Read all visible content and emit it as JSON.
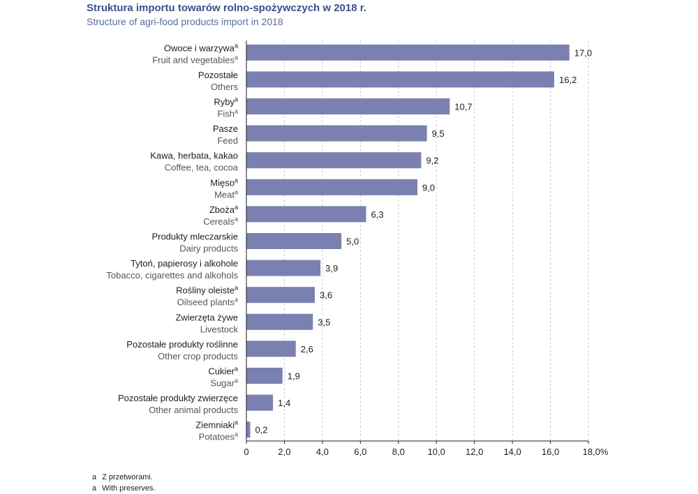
{
  "header": {
    "title": "Struktura importu towarów rolno-spożywczych w 2018 r.",
    "subtitle": "Structure of agri-food products import in 2018"
  },
  "footnotes": [
    {
      "mark": "a",
      "text": "Z przetworami."
    },
    {
      "mark": "a",
      "text": "With preserves."
    }
  ],
  "colors": {
    "bar": "#7a80b0",
    "grid": "#c8c8c8",
    "axis": "#1d1d1b",
    "label_en": "#555555"
  },
  "chart_data": {
    "type": "bar",
    "orientation": "horizontal",
    "categories": [
      {
        "pl": "Owoce i warzywa",
        "en": "Fruit and vegetables",
        "superscript": "a"
      },
      {
        "pl": "Pozostałe",
        "en": "Others",
        "superscript": ""
      },
      {
        "pl": "Ryby",
        "en": "Fish",
        "superscript": "a"
      },
      {
        "pl": "Pasze",
        "en": "Feed",
        "superscript": ""
      },
      {
        "pl": "Kawa, herbata, kakao",
        "en": "Coffee, tea, cocoa",
        "superscript": ""
      },
      {
        "pl": "Mięso",
        "en": "Meat",
        "superscript": "a"
      },
      {
        "pl": "Zboża",
        "en": "Cereals",
        "superscript": "a"
      },
      {
        "pl": "Produkty mleczarskie",
        "en": "Dairy products",
        "superscript": ""
      },
      {
        "pl": "Tytoń, papierosy i alkohole",
        "en": "Tobacco, cigarettes and alkohols",
        "superscript": ""
      },
      {
        "pl": "Rośliny oleiste",
        "en": "Oilseed plants",
        "superscript": "a"
      },
      {
        "pl": "Zwierzęta żywe",
        "en": "Livestock",
        "superscript": ""
      },
      {
        "pl": "Pozostałe produkty roślinne",
        "en": "Other crop products",
        "superscript": ""
      },
      {
        "pl": "Cukier",
        "en": "Sugar",
        "superscript": "a"
      },
      {
        "pl": "Pozostałe produkty zwierzęce",
        "en": "Other animal products",
        "superscript": ""
      },
      {
        "pl": "Ziemniaki",
        "en": "Potatoes",
        "superscript": "a"
      }
    ],
    "values": [
      17.0,
      16.2,
      10.7,
      9.5,
      9.2,
      9.0,
      6.3,
      5.0,
      3.9,
      3.6,
      3.5,
      2.6,
      1.9,
      1.4,
      0.2
    ],
    "value_labels": [
      "17,0",
      "16,2",
      "10,7",
      "9,5",
      "9,2",
      "9,0",
      "6,3",
      "5,0",
      "3,9",
      "3,6",
      "3,5",
      "2,6",
      "1,9",
      "1,4",
      "0,2"
    ],
    "xlim": [
      0,
      18
    ],
    "xticks": [
      0,
      2,
      4,
      6,
      8,
      10,
      12,
      14,
      16,
      18
    ],
    "xtick_labels": [
      "0",
      "2,0",
      "4,0",
      "6,0",
      "8,0",
      "10,0",
      "12,0",
      "14,0",
      "16,0",
      "18,0%"
    ],
    "grid": "vertical dashed"
  }
}
